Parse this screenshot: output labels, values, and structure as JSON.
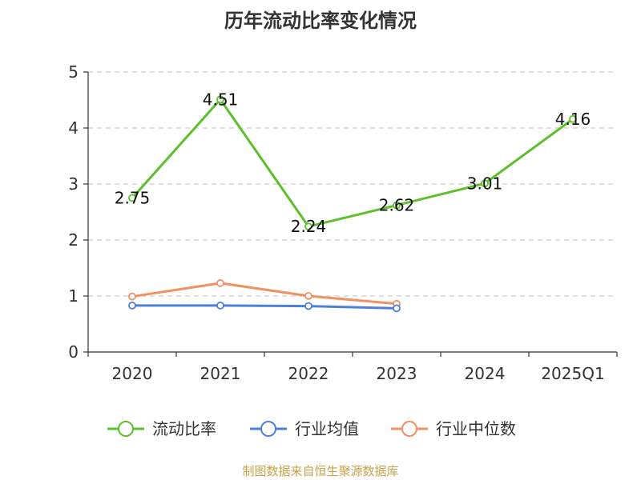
{
  "chart_data": {
    "type": "line",
    "title": "历年流动比率变化情况",
    "categories": [
      "2020",
      "2021",
      "2022",
      "2023",
      "2024",
      "2025Q1"
    ],
    "ylim": [
      0,
      5
    ],
    "yticks": [
      "0",
      "1",
      "2",
      "3",
      "4",
      "5"
    ],
    "grid": true,
    "legend_position": "bottom",
    "series": [
      {
        "name": "流动比率",
        "color": "#5cc02a",
        "labels": true,
        "values": [
          2.75,
          4.51,
          2.24,
          2.62,
          3.01,
          4.16
        ],
        "value_labels": [
          "2.75",
          "4.51",
          "2.24",
          "2.62",
          "3.01",
          "4.16"
        ]
      },
      {
        "name": "行业均值",
        "color": "#4f7fdc",
        "labels": false,
        "values": [
          0.83,
          0.83,
          0.82,
          0.78,
          null,
          null
        ]
      },
      {
        "name": "行业中位数",
        "color": "#f39063",
        "labels": false,
        "values": [
          0.99,
          1.23,
          1.0,
          0.86,
          null,
          null
        ]
      }
    ]
  },
  "source_text": "制图数据来自恒生聚源数据库"
}
